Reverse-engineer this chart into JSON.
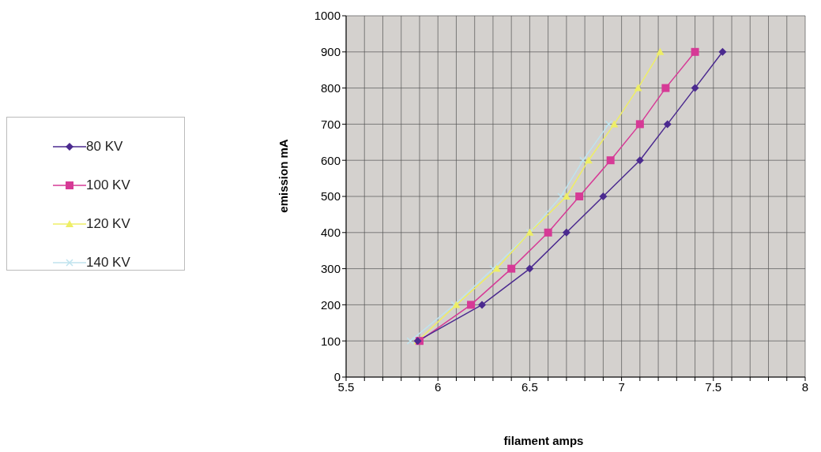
{
  "chart_data": {
    "type": "line",
    "xlabel": "filament amps",
    "ylabel": "emission mA",
    "xlim": [
      5.5,
      8
    ],
    "ylim": [
      0,
      1000
    ],
    "xticks": [
      5.5,
      {
        "value": 5.6,
        "label": null
      },
      {
        "value": 5.7,
        "label": null
      },
      {
        "value": 5.8,
        "label": null
      },
      {
        "value": 5.9,
        "label": null
      },
      6,
      {
        "value": 6.1,
        "label": null
      },
      {
        "value": 6.2,
        "label": null
      },
      {
        "value": 6.3,
        "label": null
      },
      {
        "value": 6.4,
        "label": null
      },
      6.5,
      {
        "value": 6.6,
        "label": null
      },
      {
        "value": 6.7,
        "label": null
      },
      {
        "value": 6.8,
        "label": null
      },
      {
        "value": 6.9,
        "label": null
      },
      7,
      {
        "value": 7.1,
        "label": null
      },
      {
        "value": 7.2,
        "label": null
      },
      {
        "value": 7.3,
        "label": null
      },
      {
        "value": 7.4,
        "label": null
      },
      7.5,
      {
        "value": 7.6,
        "label": null
      },
      {
        "value": 7.7,
        "label": null
      },
      {
        "value": 7.8,
        "label": null
      },
      {
        "value": 7.9,
        "label": null
      },
      8
    ],
    "yticks": [
      0,
      100,
      200,
      300,
      400,
      500,
      600,
      700,
      800,
      900,
      1000
    ],
    "grid": true,
    "legend": "left",
    "series": [
      {
        "name": "80 KV",
        "color": "#4b2a8f",
        "marker": "diamond",
        "x": [
          5.89,
          6.24,
          6.5,
          6.7,
          6.9,
          7.1,
          7.25,
          7.4,
          7.55
        ],
        "values": [
          100,
          200,
          300,
          400,
          500,
          600,
          700,
          800,
          900
        ]
      },
      {
        "name": "100 KV",
        "color": "#d63a96",
        "marker": "square",
        "x": [
          5.9,
          6.18,
          6.4,
          6.6,
          6.77,
          6.94,
          7.1,
          7.24,
          7.4
        ],
        "values": [
          100,
          200,
          300,
          400,
          500,
          600,
          700,
          800,
          900
        ]
      },
      {
        "name": "120 KV",
        "color": "#eeee66",
        "marker": "triangle",
        "x": [
          5.89,
          6.1,
          6.32,
          6.5,
          6.7,
          6.82,
          6.96,
          7.09,
          7.21
        ],
        "values": [
          100,
          200,
          300,
          400,
          500,
          600,
          700,
          800,
          900
        ]
      },
      {
        "name": "140 KV",
        "color": "#bfe3ee",
        "marker": "cross",
        "x": [
          5.85,
          6.09,
          6.3,
          6.5,
          6.67,
          6.79,
          6.93
        ],
        "values": [
          100,
          200,
          300,
          400,
          500,
          600,
          700
        ]
      }
    ]
  }
}
